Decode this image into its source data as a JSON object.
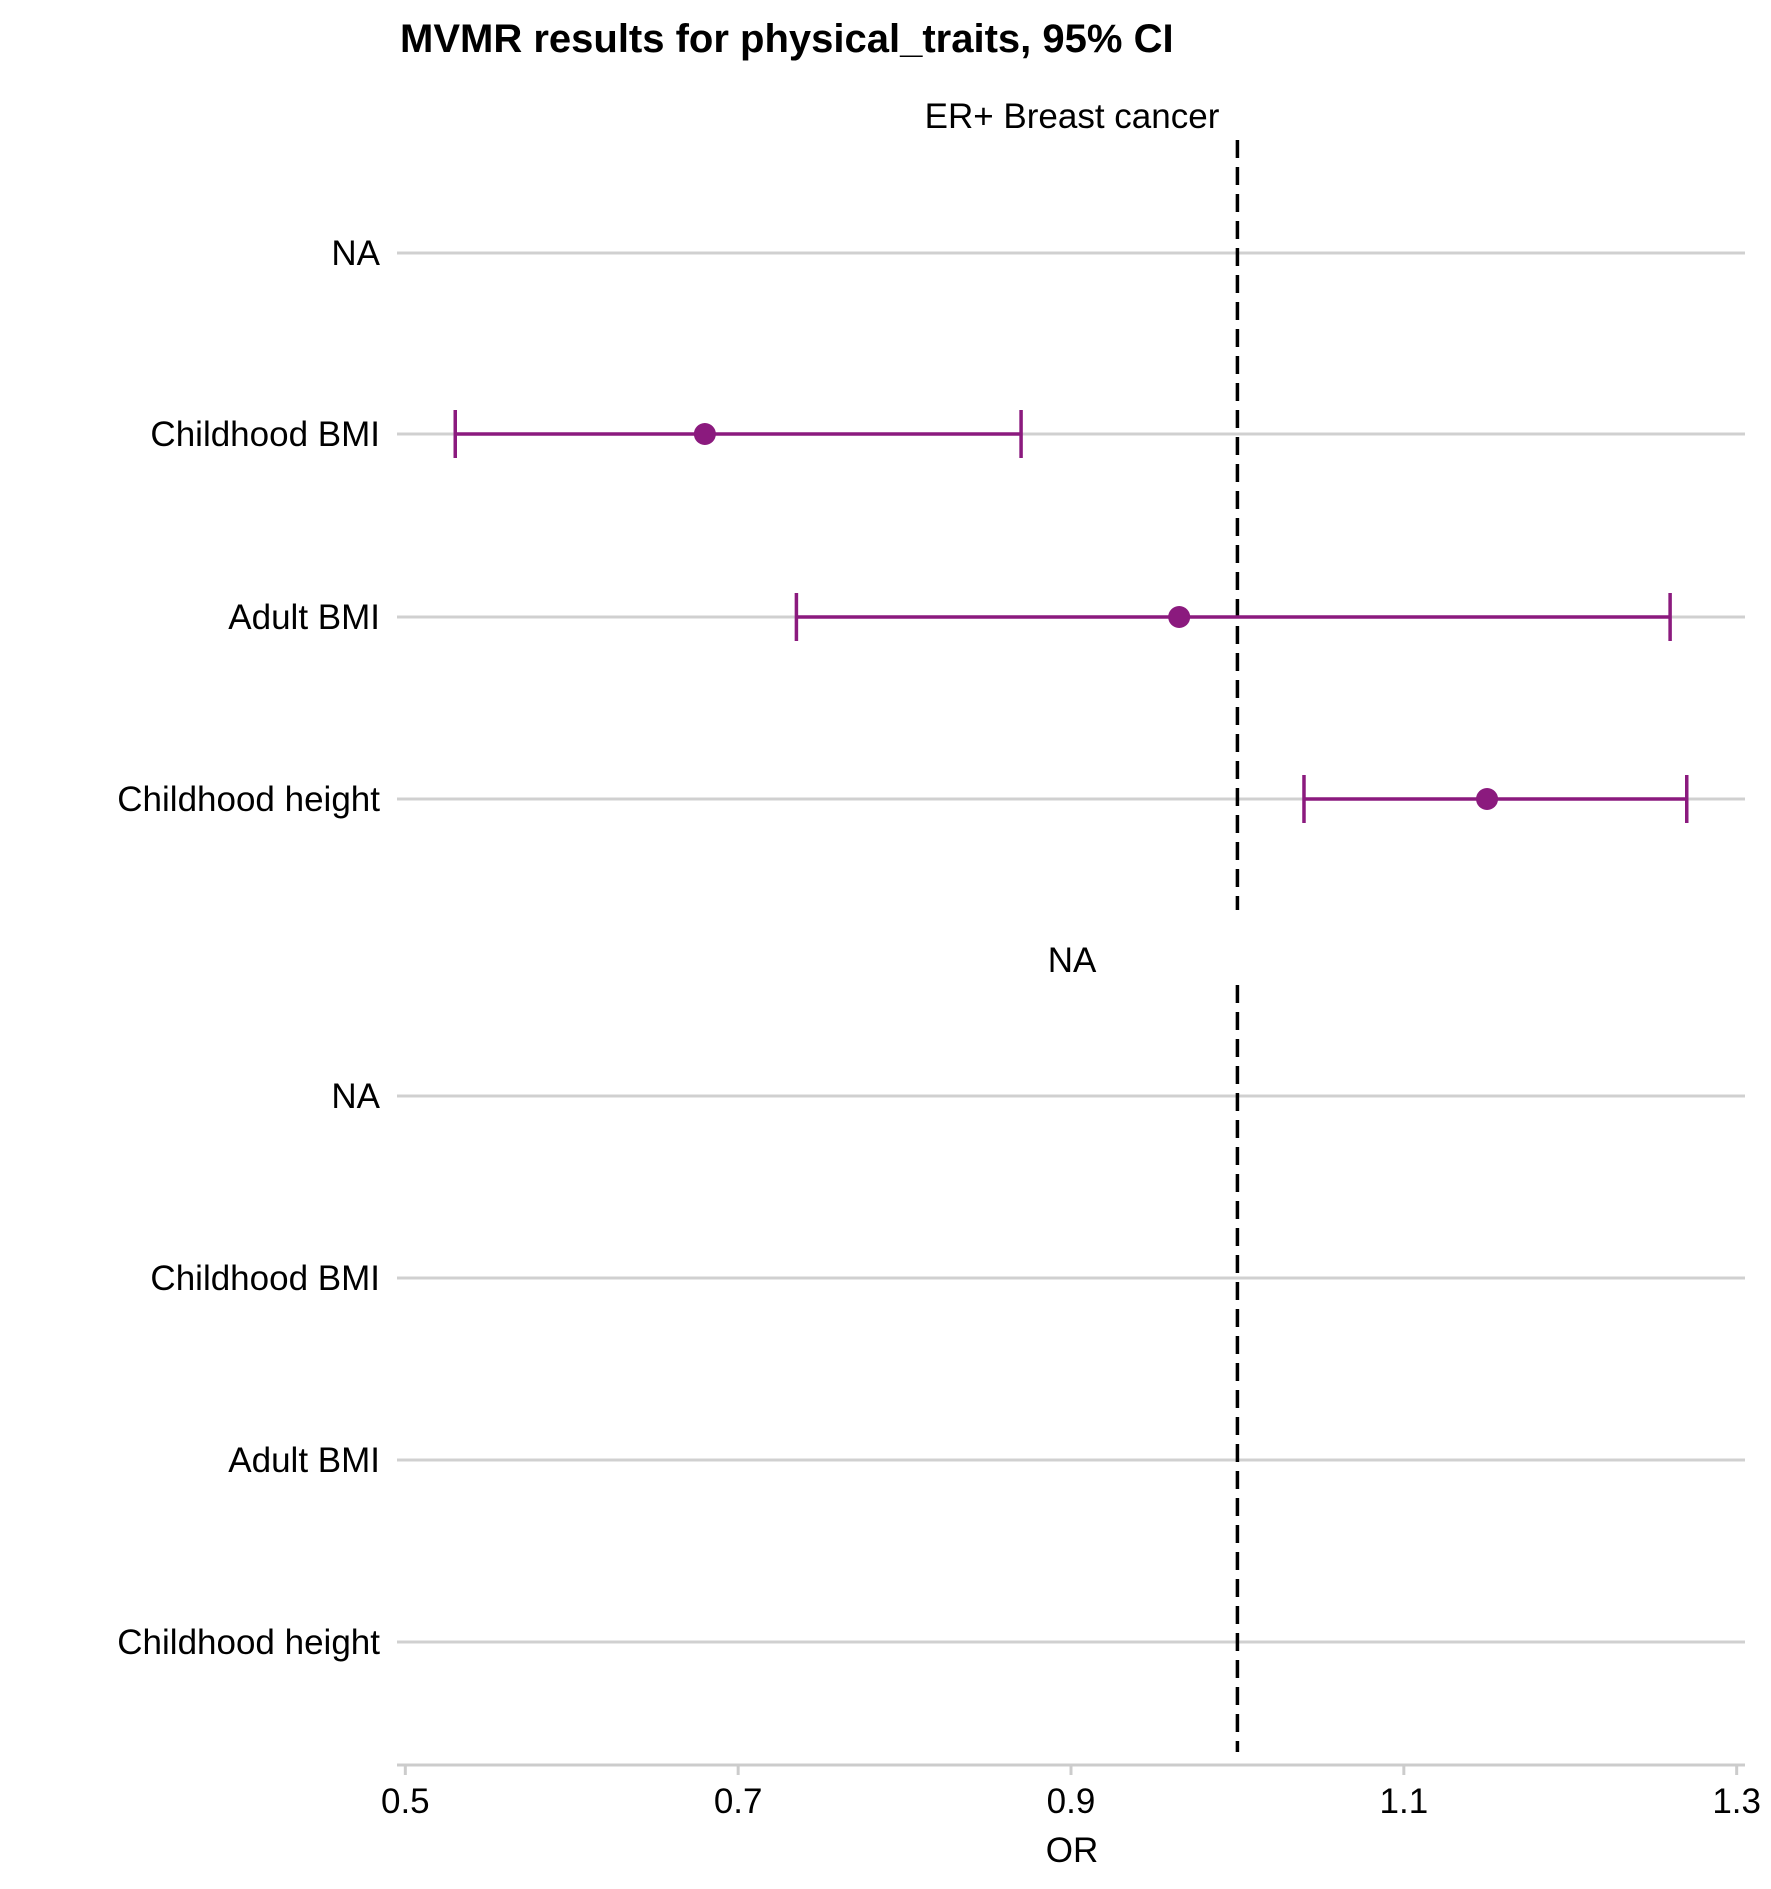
{
  "chart_data": {
    "type": "forest",
    "title": "MVMR results for physical_traits, 95% CI",
    "xlabel": "OR",
    "ylabel": "",
    "xlim": [
      0.495,
      1.305
    ],
    "x_ticks": [
      0.5,
      0.7,
      0.9,
      1.1,
      1.3
    ],
    "x_tick_labels": [
      "0.5",
      "0.7",
      "0.9",
      "1.1",
      "1.3"
    ],
    "reference_line": 1.0,
    "grid": "horizontal",
    "colors": {
      "point": "#8b1a7e",
      "grid": "#d0d0d0",
      "reference": "#000000"
    },
    "panels": [
      {
        "label": "ER+ Breast cancer",
        "rows": [
          {
            "label": "NA",
            "or": null,
            "lower": null,
            "upper": null
          },
          {
            "label": "Childhood BMI",
            "or": 0.68,
            "lower": 0.53,
            "upper": 0.87
          },
          {
            "label": "Adult BMI",
            "or": 0.965,
            "lower": 0.735,
            "upper": 1.26
          },
          {
            "label": "Childhood height",
            "or": 1.15,
            "lower": 1.04,
            "upper": 1.27
          }
        ]
      },
      {
        "label": "NA",
        "rows": [
          {
            "label": "NA",
            "or": null,
            "lower": null,
            "upper": null
          },
          {
            "label": "Childhood BMI",
            "or": null,
            "lower": null,
            "upper": null
          },
          {
            "label": "Adult BMI",
            "or": null,
            "lower": null,
            "upper": null
          },
          {
            "label": "Childhood height",
            "or": null,
            "lower": null,
            "upper": null
          }
        ]
      }
    ]
  }
}
